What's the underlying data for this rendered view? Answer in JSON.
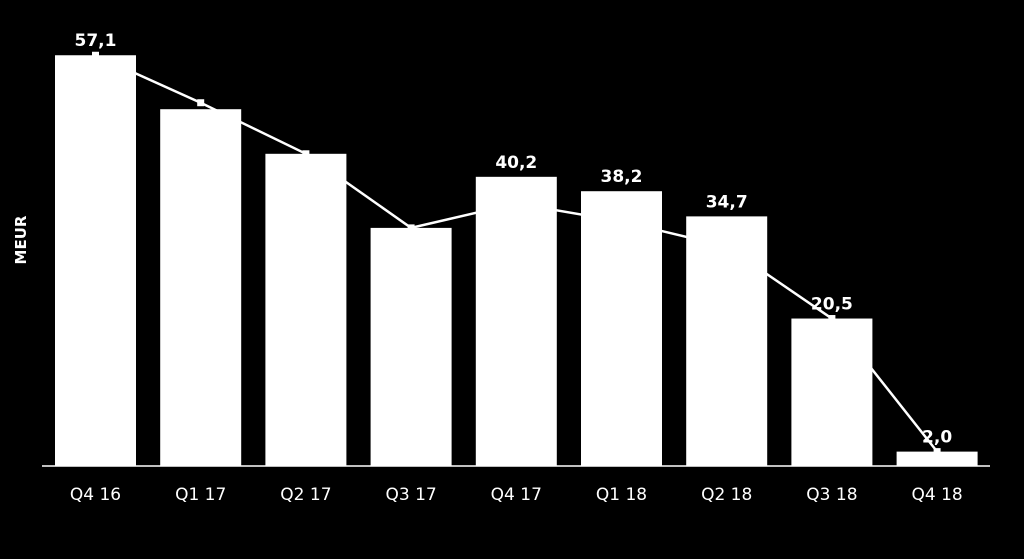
{
  "chart_data": {
    "type": "bar",
    "ylabel": "MEUR",
    "categories": [
      "Q4 16",
      "Q1 17",
      "Q2 17",
      "Q3 17",
      "Q4 17",
      "Q1 18",
      "Q2 18",
      "Q3 18",
      "Q4 18"
    ],
    "series": [
      {
        "kind": "bar",
        "values": [
          57.1,
          49.6,
          43.4,
          33.1,
          40.2,
          38.2,
          34.7,
          20.5,
          2.0
        ],
        "labels": [
          "57,1",
          "",
          "",
          "",
          "40,2",
          "38,2",
          "34,7",
          "20,5",
          "2,0"
        ]
      },
      {
        "kind": "line",
        "values": [
          57.1,
          50.5,
          43.4,
          33.1,
          36.5,
          34.0,
          30.5,
          20.5,
          2.0
        ]
      }
    ],
    "ylim": [
      0,
      62
    ],
    "grid": false,
    "colors": {
      "bar": "#ffffff",
      "line": "#ffffff",
      "background": "#000000"
    }
  }
}
